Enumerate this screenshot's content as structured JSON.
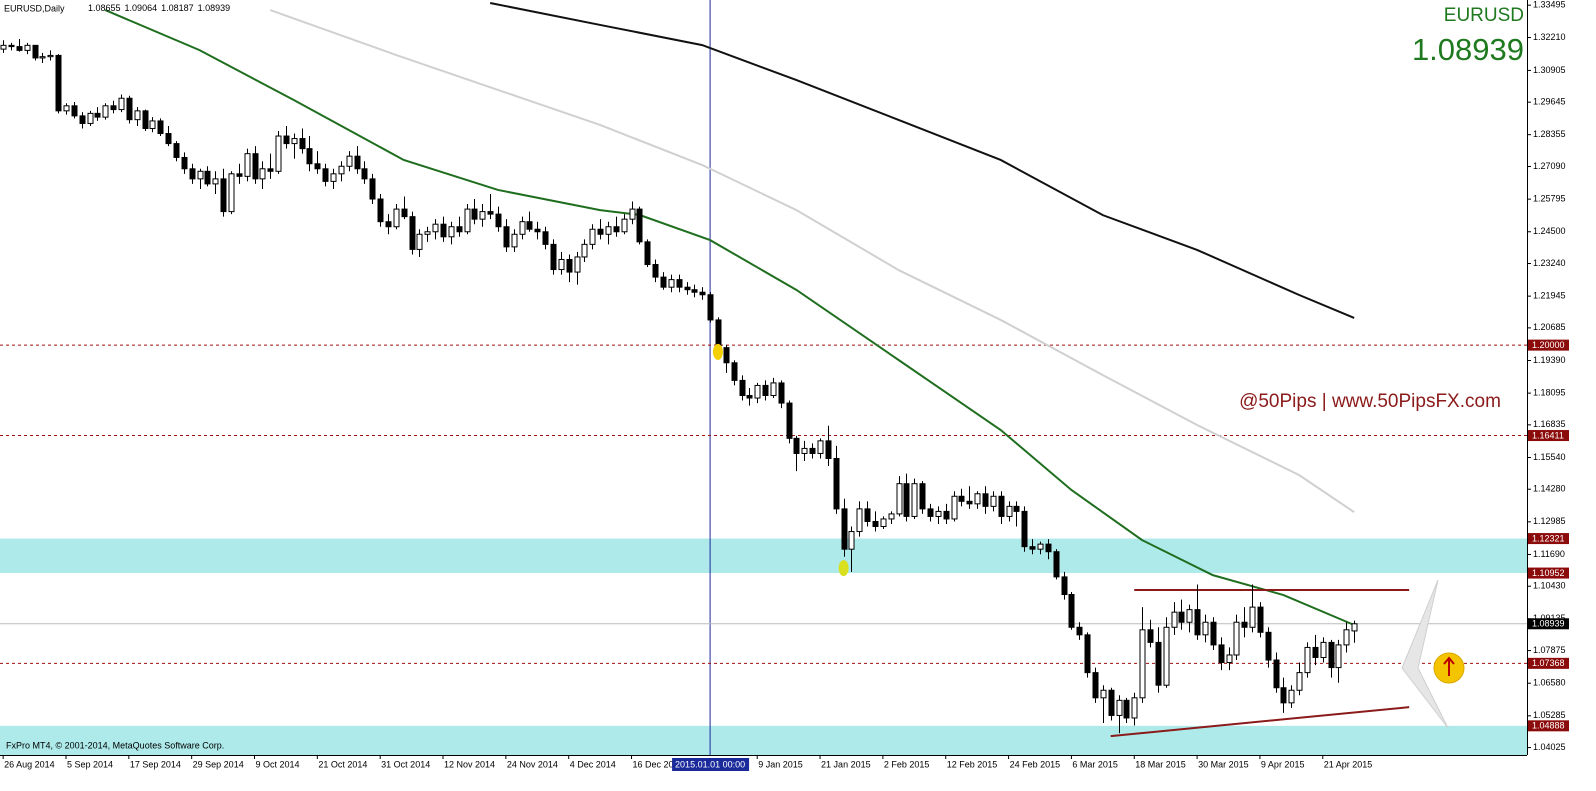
{
  "chart_data": {
    "type": "candlestick",
    "title": "EURUSD,Daily",
    "symbol": "EURUSD",
    "watermark": "@50Pips | www.50PipsFX.com",
    "copyright": "FxPro MT4, © 2001-2014, MetaQuotes Software Corp.",
    "xlim": [
      -0.4,
      194
    ],
    "ylim": [
      1.0373,
      1.337
    ],
    "xticks": [
      {
        "value": 0,
        "label": "26 Aug 2014"
      },
      {
        "value": 8,
        "label": "5 Sep 2014"
      },
      {
        "value": 16,
        "label": "17 Sep 2014"
      },
      {
        "value": 24,
        "label": "29 Sep 2014"
      },
      {
        "value": 32,
        "label": "9 Oct 2014"
      },
      {
        "value": 40,
        "label": "21 Oct 2014"
      },
      {
        "value": 48,
        "label": "31 Oct 2014"
      },
      {
        "value": 56,
        "label": "12 Nov 2014"
      },
      {
        "value": 64,
        "label": "24 Nov 2014"
      },
      {
        "value": 72,
        "label": "4 Dec 2014"
      },
      {
        "value": 80,
        "label": "16 Dec 2014"
      },
      {
        "value": 96,
        "label": "9 Jan 2015"
      },
      {
        "value": 104,
        "label": "21 Jan 2015"
      },
      {
        "value": 112,
        "label": "2 Feb 2015"
      },
      {
        "value": 120,
        "label": "12 Feb 2015"
      },
      {
        "value": 128,
        "label": "24 Feb 2015"
      },
      {
        "value": 136,
        "label": "6 Mar 2015"
      },
      {
        "value": 144,
        "label": "18 Mar 2015"
      },
      {
        "value": 152,
        "label": "30 Mar 2015"
      },
      {
        "value": 160,
        "label": "9 Apr 2015"
      },
      {
        "value": 168,
        "label": "21 Apr 2015"
      }
    ],
    "cursor": {
      "value": 90,
      "label": "2015.01.01 00:00"
    },
    "yticks": [
      1.33495,
      {
        "value": 1.3221,
        "label": "1.32210"
      },
      1.30905,
      1.29645,
      1.28355,
      {
        "value": 1.2709,
        "label": "1.27090"
      },
      1.25795,
      {
        "value": 1.245,
        "label": "1.24500"
      },
      {
        "value": 1.2324,
        "label": "1.23240"
      },
      1.21945,
      1.20685,
      {
        "value": 1.1939,
        "label": "1.19390"
      },
      1.18095,
      1.16835,
      {
        "value": 1.1554,
        "label": "1.15540"
      },
      {
        "value": 1.1428,
        "label": "1.14280"
      },
      1.12985,
      {
        "value": 1.1169,
        "label": "1.11690"
      },
      {
        "value": 1.1043,
        "label": "1.10430"
      },
      1.09135,
      1.07875,
      {
        "value": 1.0658,
        "label": "1.06580"
      },
      1.05285,
      1.04025
    ],
    "levels": [
      {
        "value": 1.2,
        "label": "1.20000"
      },
      1.16411,
      1.07368
    ],
    "zones": [
      {
        "low": 1.10952,
        "high": 1.12321
      },
      {
        "high": 1.04888
      }
    ],
    "moving_averages": [
      {
        "color": "#1f6e1f",
        "x": [
          13,
          25,
          37,
          51,
          63,
          76,
          81,
          90,
          101,
          114,
          127,
          136,
          145,
          154,
          163,
          172
        ],
        "values": [
          1.333,
          1.3171,
          1.2973,
          1.2735,
          1.2616,
          1.2536,
          1.2517,
          1.2417,
          1.2219,
          1.1941,
          1.1663,
          1.1425,
          1.1226,
          1.1087,
          1.1008,
          1.0889
        ]
      },
      {
        "color": "#d0d0d0",
        "x": [
          34,
          50,
          63,
          76,
          89,
          101,
          114,
          127,
          140,
          152,
          165,
          172
        ],
        "values": [
          1.333,
          1.3152,
          1.3013,
          1.2874,
          1.2715,
          1.2536,
          1.2298,
          1.21,
          1.1881,
          1.1683,
          1.1484,
          1.1337
        ]
      },
      {
        "color": "#111111",
        "x": [
          62,
          76,
          89,
          101,
          114,
          127,
          140,
          152,
          165,
          172
        ],
        "values": [
          1.3358,
          1.3271,
          1.3191,
          1.3052,
          1.2894,
          1.2735,
          1.2516,
          1.2378,
          1.2199,
          1.2108
        ]
      }
    ],
    "trendlines": [
      {
        "color": "#8b1a1a",
        "x": [
          144,
          179
        ],
        "values": [
          1.1028,
          1.1028
        ]
      },
      {
        "color": "#8b1a1a",
        "x": [
          141,
          179
        ],
        "values": [
          1.0448,
          1.0563
        ]
      }
    ],
    "markers": [
      {
        "x": 91,
        "value": 1.1973,
        "color": "#f5d000"
      },
      {
        "x": 107,
        "value": 1.1115,
        "color": "#d8e020"
      }
    ],
    "candles": [
      [
        1.3175,
        1.321,
        1.316,
        1.319
      ],
      [
        1.319,
        1.32,
        1.317,
        1.3185
      ],
      [
        1.3185,
        1.3215,
        1.3165,
        1.317
      ],
      [
        1.317,
        1.32,
        1.3155,
        1.319
      ],
      [
        1.319,
        1.319,
        1.313,
        1.314
      ],
      [
        1.314,
        1.316,
        1.312,
        1.3145
      ],
      [
        1.3145,
        1.317,
        1.313,
        1.315
      ],
      [
        1.315,
        1.3155,
        1.292,
        1.293
      ],
      [
        1.293,
        1.296,
        1.2915,
        1.295
      ],
      [
        1.295,
        1.2965,
        1.29,
        1.291
      ],
      [
        1.291,
        1.2925,
        1.286,
        1.288
      ],
      [
        1.288,
        1.293,
        1.287,
        1.292
      ],
      [
        1.292,
        1.2945,
        1.289,
        1.2905
      ],
      [
        1.2905,
        1.296,
        1.2895,
        1.295
      ],
      [
        1.295,
        1.297,
        1.292,
        1.2935
      ],
      [
        1.2935,
        1.2995,
        1.2925,
        1.298
      ],
      [
        1.298,
        1.299,
        1.288,
        1.2895
      ],
      [
        1.2895,
        1.2945,
        1.287,
        1.293
      ],
      [
        1.293,
        1.2935,
        1.285,
        1.286
      ],
      [
        1.286,
        1.2905,
        1.2845,
        1.289
      ],
      [
        1.289,
        1.29,
        1.283,
        1.284
      ],
      [
        1.284,
        1.287,
        1.279,
        1.28
      ],
      [
        1.28,
        1.281,
        1.273,
        1.2745
      ],
      [
        1.2745,
        1.2765,
        1.268,
        1.27
      ],
      [
        1.27,
        1.272,
        1.264,
        1.266
      ],
      [
        1.266,
        1.27,
        1.262,
        1.269
      ],
      [
        1.269,
        1.271,
        1.263,
        1.264
      ],
      [
        1.264,
        1.269,
        1.26,
        1.266
      ],
      [
        1.266,
        1.27,
        1.251,
        1.253
      ],
      [
        1.253,
        1.269,
        1.252,
        1.268
      ],
      [
        1.268,
        1.272,
        1.264,
        1.267
      ],
      [
        1.267,
        1.278,
        1.265,
        1.276
      ],
      [
        1.276,
        1.279,
        1.264,
        1.266
      ],
      [
        1.266,
        1.273,
        1.262,
        1.27
      ],
      [
        1.27,
        1.276,
        1.266,
        1.269
      ],
      [
        1.269,
        1.285,
        1.268,
        1.283
      ],
      [
        1.283,
        1.287,
        1.278,
        1.28
      ],
      [
        1.28,
        1.284,
        1.274,
        1.282
      ],
      [
        1.282,
        1.286,
        1.276,
        1.278
      ],
      [
        1.278,
        1.283,
        1.269,
        1.272
      ],
      [
        1.272,
        1.277,
        1.268,
        1.27
      ],
      [
        1.27,
        1.272,
        1.263,
        1.265
      ],
      [
        1.265,
        1.27,
        1.262,
        1.268
      ],
      [
        1.268,
        1.273,
        1.265,
        1.271
      ],
      [
        1.271,
        1.277,
        1.269,
        1.275
      ],
      [
        1.275,
        1.279,
        1.268,
        1.27
      ],
      [
        1.27,
        1.273,
        1.264,
        1.266
      ],
      [
        1.266,
        1.268,
        1.256,
        1.258
      ],
      [
        1.258,
        1.26,
        1.247,
        1.249
      ],
      [
        1.249,
        1.252,
        1.244,
        1.247
      ],
      [
        1.247,
        1.256,
        1.246,
        1.254
      ],
      [
        1.254,
        1.259,
        1.25,
        1.251
      ],
      [
        1.251,
        1.253,
        1.236,
        1.238
      ],
      [
        1.238,
        1.246,
        1.235,
        1.244
      ],
      [
        1.244,
        1.247,
        1.241,
        1.245
      ],
      [
        1.245,
        1.25,
        1.242,
        1.248
      ],
      [
        1.248,
        1.251,
        1.241,
        1.243
      ],
      [
        1.243,
        1.249,
        1.24,
        1.247
      ],
      [
        1.247,
        1.251,
        1.243,
        1.245
      ],
      [
        1.245,
        1.256,
        1.244,
        1.254
      ],
      [
        1.254,
        1.258,
        1.248,
        1.25
      ],
      [
        1.25,
        1.256,
        1.247,
        1.253
      ],
      [
        1.253,
        1.26,
        1.25,
        1.252
      ],
      [
        1.252,
        1.255,
        1.245,
        1.247
      ],
      [
        1.247,
        1.25,
        1.237,
        1.239
      ],
      [
        1.239,
        1.246,
        1.237,
        1.244
      ],
      [
        1.244,
        1.251,
        1.242,
        1.249
      ],
      [
        1.249,
        1.253,
        1.245,
        1.246
      ],
      [
        1.246,
        1.249,
        1.242,
        1.245
      ],
      [
        1.245,
        1.247,
        1.238,
        1.24
      ],
      [
        1.24,
        1.242,
        1.228,
        1.23
      ],
      [
        1.23,
        1.237,
        1.228,
        1.234
      ],
      [
        1.234,
        1.236,
        1.225,
        1.229
      ],
      [
        1.229,
        1.237,
        1.224,
        1.235
      ],
      [
        1.235,
        1.242,
        1.233,
        1.24
      ],
      [
        1.24,
        1.248,
        1.238,
        1.246
      ],
      [
        1.246,
        1.25,
        1.242,
        1.244
      ],
      [
        1.244,
        1.249,
        1.24,
        1.247
      ],
      [
        1.247,
        1.251,
        1.243,
        1.245
      ],
      [
        1.245,
        1.252,
        1.244,
        1.25
      ],
      [
        1.25,
        1.257,
        1.248,
        1.254
      ],
      [
        1.254,
        1.255,
        1.24,
        1.241
      ],
      [
        1.241,
        1.242,
        1.231,
        1.232
      ],
      [
        1.232,
        1.234,
        1.225,
        1.227
      ],
      [
        1.227,
        1.229,
        1.222,
        1.223
      ],
      [
        1.223,
        1.228,
        1.221,
        1.226
      ],
      [
        1.226,
        1.228,
        1.221,
        1.223
      ],
      [
        1.223,
        1.225,
        1.22,
        1.222
      ],
      [
        1.222,
        1.224,
        1.219,
        1.221
      ],
      [
        1.221,
        1.223,
        1.218,
        1.22
      ],
      [
        1.22,
        1.221,
        1.209,
        1.21
      ],
      [
        1.21,
        1.211,
        1.196,
        1.199
      ],
      [
        1.199,
        1.2,
        1.189,
        1.193
      ],
      [
        1.193,
        1.194,
        1.184,
        1.186
      ],
      [
        1.186,
        1.188,
        1.178,
        1.18
      ],
      [
        1.18,
        1.183,
        1.176,
        1.179
      ],
      [
        1.179,
        1.185,
        1.177,
        1.184
      ],
      [
        1.184,
        1.186,
        1.178,
        1.18
      ],
      [
        1.18,
        1.187,
        1.179,
        1.185
      ],
      [
        1.185,
        1.186,
        1.175,
        1.177
      ],
      [
        1.177,
        1.178,
        1.161,
        1.163
      ],
      [
        1.163,
        1.164,
        1.15,
        1.157
      ],
      [
        1.157,
        1.162,
        1.154,
        1.159
      ],
      [
        1.159,
        1.161,
        1.155,
        1.157
      ],
      [
        1.157,
        1.163,
        1.155,
        1.162
      ],
      [
        1.162,
        1.168,
        1.152,
        1.155
      ],
      [
        1.155,
        1.16,
        1.133,
        1.135
      ],
      [
        1.135,
        1.139,
        1.116,
        1.119
      ],
      [
        1.119,
        1.128,
        1.11,
        1.126
      ],
      [
        1.126,
        1.138,
        1.124,
        1.135
      ],
      [
        1.135,
        1.138,
        1.128,
        1.13
      ],
      [
        1.13,
        1.134,
        1.126,
        1.128
      ],
      [
        1.128,
        1.132,
        1.127,
        1.131
      ],
      [
        1.131,
        1.134,
        1.129,
        1.133
      ],
      [
        1.133,
        1.148,
        1.132,
        1.145
      ],
      [
        1.145,
        1.149,
        1.13,
        1.132
      ],
      [
        1.132,
        1.147,
        1.131,
        1.145
      ],
      [
        1.145,
        1.146,
        1.133,
        1.135
      ],
      [
        1.135,
        1.137,
        1.13,
        1.132
      ],
      [
        1.132,
        1.136,
        1.129,
        1.134
      ],
      [
        1.134,
        1.137,
        1.129,
        1.131
      ],
      [
        1.131,
        1.142,
        1.13,
        1.14
      ],
      [
        1.14,
        1.143,
        1.136,
        1.138
      ],
      [
        1.138,
        1.144,
        1.135,
        1.137
      ],
      [
        1.137,
        1.142,
        1.135,
        1.141
      ],
      [
        1.141,
        1.144,
        1.133,
        1.136
      ],
      [
        1.136,
        1.142,
        1.134,
        1.14
      ],
      [
        1.14,
        1.142,
        1.129,
        1.132
      ],
      [
        1.132,
        1.138,
        1.13,
        1.136
      ],
      [
        1.136,
        1.138,
        1.128,
        1.134
      ],
      [
        1.134,
        1.136,
        1.118,
        1.12
      ],
      [
        1.12,
        1.123,
        1.117,
        1.119
      ],
      [
        1.119,
        1.122,
        1.117,
        1.121
      ],
      [
        1.121,
        1.123,
        1.115,
        1.118
      ],
      [
        1.118,
        1.119,
        1.107,
        1.108
      ],
      [
        1.108,
        1.11,
        1.099,
        1.101
      ],
      [
        1.101,
        1.102,
        1.087,
        1.088
      ],
      [
        1.088,
        1.09,
        1.083,
        1.085
      ],
      [
        1.085,
        1.086,
        1.068,
        1.07
      ],
      [
        1.07,
        1.072,
        1.058,
        1.06
      ],
      [
        1.06,
        1.065,
        1.05,
        1.063
      ],
      [
        1.063,
        1.064,
        1.051,
        1.053
      ],
      [
        1.053,
        1.061,
        1.046,
        1.059
      ],
      [
        1.059,
        1.06,
        1.05,
        1.052
      ],
      [
        1.052,
        1.062,
        1.049,
        1.06
      ],
      [
        1.06,
        1.096,
        1.058,
        1.087
      ],
      [
        1.087,
        1.091,
        1.08,
        1.082
      ],
      [
        1.082,
        1.088,
        1.062,
        1.065
      ],
      [
        1.065,
        1.092,
        1.064,
        1.088
      ],
      [
        1.088,
        1.098,
        1.085,
        1.094
      ],
      [
        1.094,
        1.099,
        1.087,
        1.09
      ],
      [
        1.09,
        1.097,
        1.086,
        1.095
      ],
      [
        1.095,
        1.105,
        1.083,
        1.085
      ],
      [
        1.085,
        1.093,
        1.082,
        1.09
      ],
      [
        1.09,
        1.092,
        1.079,
        1.081
      ],
      [
        1.081,
        1.084,
        1.071,
        1.074
      ],
      [
        1.074,
        1.08,
        1.071,
        1.077
      ],
      [
        1.077,
        1.093,
        1.075,
        1.09
      ],
      [
        1.09,
        1.096,
        1.084,
        1.088
      ],
      [
        1.088,
        1.105,
        1.086,
        1.096
      ],
      [
        1.096,
        1.098,
        1.084,
        1.086
      ],
      [
        1.086,
        1.088,
        1.072,
        1.075
      ],
      [
        1.075,
        1.078,
        1.062,
        1.064
      ],
      [
        1.064,
        1.068,
        1.054,
        1.058
      ],
      [
        1.058,
        1.065,
        1.056,
        1.063
      ],
      [
        1.063,
        1.074,
        1.061,
        1.07
      ],
      [
        1.07,
        1.082,
        1.068,
        1.08
      ],
      [
        1.08,
        1.085,
        1.073,
        1.076
      ],
      [
        1.076,
        1.084,
        1.074,
        1.082
      ],
      [
        1.082,
        1.083,
        1.068,
        1.072
      ],
      [
        1.072,
        1.083,
        1.066,
        1.081
      ],
      [
        1.081,
        1.09,
        1.078,
        1.087
      ],
      [
        1.08655,
        1.09064,
        1.08187,
        1.08939
      ]
    ]
  }
}
